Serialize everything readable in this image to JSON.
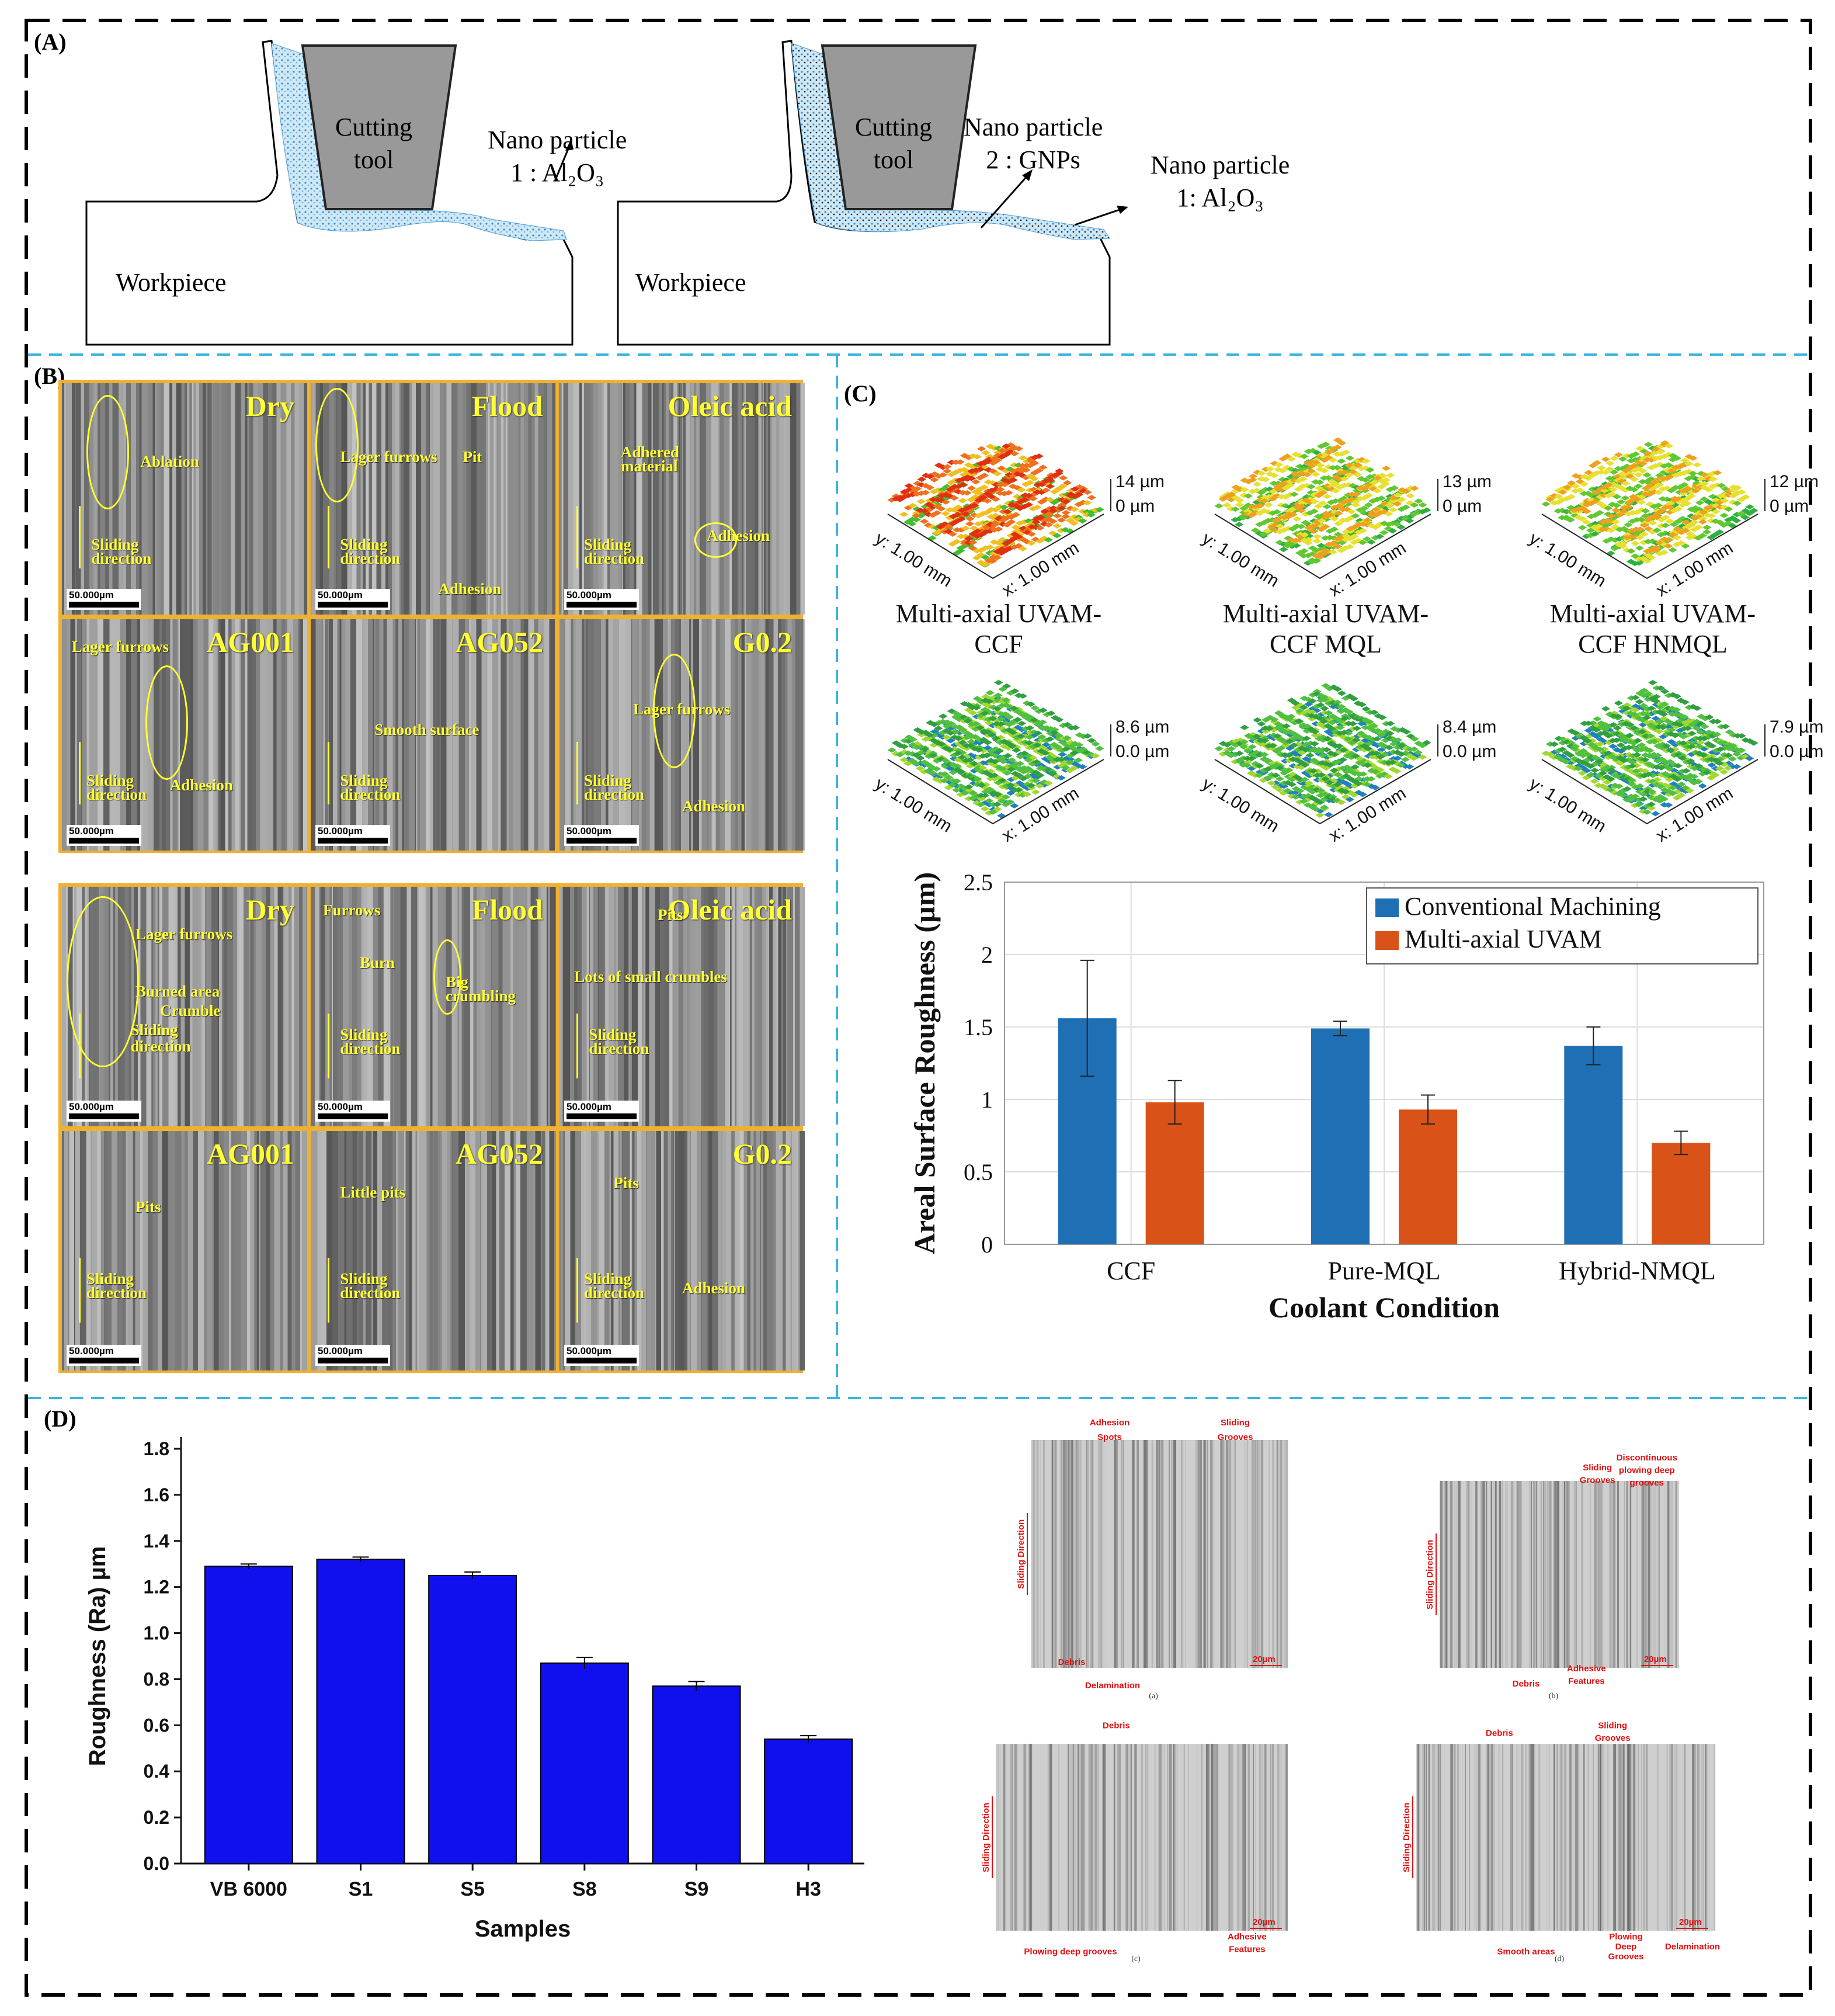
{
  "panels": {
    "a": {
      "label": "(A)",
      "left": {
        "tool": [
          "Cutting",
          "tool"
        ],
        "particle": [
          "Nano particle",
          "1 : Al₂O₃"
        ],
        "workpiece": "Workpiece"
      },
      "right": {
        "tool": [
          "Cutting",
          "tool"
        ],
        "particle2": [
          "Nano particle",
          "2 : GNPs"
        ],
        "particle1": [
          "Nano particle",
          "1: Al₂O₃"
        ],
        "workpiece": "Workpiece"
      }
    },
    "b": {
      "label": "(B)",
      "scale": "50.000µm",
      "top_grid": [
        {
          "title": "Dry",
          "annotations": [
            "Ablation",
            "Sliding",
            "direction"
          ]
        },
        {
          "title": "Flood",
          "annotations": [
            "Lager furrows",
            "Pit",
            "Sliding",
            "direction",
            "Adhesion"
          ]
        },
        {
          "title": "Oleic acid",
          "annotations": [
            "Adhered",
            "material",
            "Sliding",
            "direction",
            "Adhesion"
          ]
        },
        {
          "title": "AG001",
          "annotations": [
            "Lager furrows",
            "Sliding",
            "direction",
            "Adhesion"
          ]
        },
        {
          "title": "AG052",
          "annotations": [
            "Smooth surface",
            "Sliding",
            "direction"
          ]
        },
        {
          "title": "G0.2",
          "annotations": [
            "Lager furrows",
            "Sliding",
            "direction",
            "Adhesion"
          ]
        }
      ],
      "bottom_grid": [
        {
          "title": "Dry",
          "annotations": [
            "Lager furrows",
            "Burned area",
            "Crumble",
            "Sliding",
            "direction"
          ]
        },
        {
          "title": "Flood",
          "annotations": [
            "Furrows",
            "Burn",
            "Big",
            "crumbling",
            "Sliding",
            "direction"
          ]
        },
        {
          "title": "Oleic acid",
          "annotations": [
            "Pits",
            "Lots of small crumbles",
            "Sliding",
            "direction"
          ]
        },
        {
          "title": "AG001",
          "annotations": [
            "Pits",
            "Sliding",
            "direction"
          ]
        },
        {
          "title": "AG052",
          "annotations": [
            "Little pits",
            "Sliding",
            "direction"
          ]
        },
        {
          "title": "G0.2",
          "annotations": [
            "Pits",
            "Sliding",
            "direction",
            "Adhesion"
          ]
        }
      ]
    },
    "c": {
      "label": "(C)",
      "surfaces": [
        {
          "zmax": "14 µm",
          "zmin": "0 µm",
          "y": "y: 1.00 mm",
          "x": "x: 1.00 mm",
          "caption": [
            "Multi-axial UVAM-",
            "CCF"
          ],
          "palette": "red"
        },
        {
          "zmax": "13 µm",
          "zmin": "0 µm",
          "y": "y: 1.00 mm",
          "x": "x: 1.00 mm",
          "caption": [
            "Multi-axial UVAM-",
            "CCF MQL"
          ],
          "palette": "orange"
        },
        {
          "zmax": "12 µm",
          "zmin": "0 µm",
          "y": "y: 1.00 mm",
          "x": "x: 1.00 mm",
          "caption": [
            "Multi-axial UVAM-",
            "CCF HNMQL"
          ],
          "palette": "orange"
        },
        {
          "zmax": "8.6 µm",
          "zmin": "0.0 µm",
          "y": "y: 1.00 mm",
          "x": "x: 1.00 mm",
          "caption": [],
          "palette": "green"
        },
        {
          "zmax": "8.4 µm",
          "zmin": "0.0 µm",
          "y": "y: 1.00 mm",
          "x": "x: 1.00 mm",
          "caption": [],
          "palette": "green"
        },
        {
          "zmax": "7.9 µm",
          "zmin": "0.0 µm",
          "y": "y: 1.00 mm",
          "x": "x: 1.00 mm",
          "caption": [],
          "palette": "green"
        }
      ]
    },
    "d": {
      "label": "(D)",
      "sem": [
        {
          "sub": "(a)",
          "side": "Sliding Direction",
          "scale": "20µm",
          "annotations": [
            "Adhesion",
            "Spots",
            "Sliding",
            "Grooves",
            "Debris",
            "Delamination"
          ]
        },
        {
          "sub": "(b)",
          "side": "Sliding Direction",
          "scale": "20µm",
          "annotations": [
            "Sliding",
            "Grooves",
            "Discontinuous",
            "plowing deep",
            "grooves",
            "Debris",
            "Adhesive",
            "Features"
          ]
        },
        {
          "sub": "(c)",
          "side": "Sliding Direction",
          "scale": "20µm",
          "annotations": [
            "Debris",
            "Plowing deep grooves",
            "Adhesive",
            "Features"
          ]
        },
        {
          "sub": "(d)",
          "side": "Sliding Direction",
          "scale": "20µm",
          "annotations": [
            "Debris",
            "Sliding",
            "Grooves",
            "Smooth areas",
            "Plowing",
            "Deep",
            "Grooves",
            "Delamination"
          ]
        }
      ]
    }
  },
  "colors": {
    "tile_border": "#f0b030",
    "yellow_text": "#ffff33",
    "blue_bar": "#1010ee",
    "cm_bar": "#1f6fb5",
    "uvam_bar": "#d95319",
    "dash_cyan": "#3ab4e0",
    "sem_red": "#e01010"
  },
  "chart_data": [
    {
      "type": "bar",
      "panel": "C",
      "categories": [
        "CCF",
        "Pure-MQL",
        "Hybrid-NMQL"
      ],
      "series": [
        {
          "name": "Conventional Machining",
          "values": [
            1.56,
            1.49,
            1.37
          ],
          "errors": [
            0.4,
            0.05,
            0.13
          ]
        },
        {
          "name": "Multi-axial UVAM",
          "values": [
            0.98,
            0.93,
            0.7
          ],
          "errors": [
            0.15,
            0.1,
            0.08
          ]
        }
      ],
      "xlabel": "Coolant Condition",
      "ylabel": "Areal Surface Roughness (µm)",
      "ylim": [
        0,
        2.5
      ],
      "yticks": [
        "0",
        "0.5",
        "1",
        "1.5",
        "2",
        "2.5"
      ],
      "grid": true,
      "legend": "top-right"
    },
    {
      "type": "bar",
      "panel": "D",
      "categories": [
        "VB 6000",
        "S1",
        "S5",
        "S8",
        "S9",
        "H3"
      ],
      "values": [
        1.29,
        1.32,
        1.25,
        0.87,
        0.77,
        0.54
      ],
      "errors": [
        0.01,
        0.01,
        0.015,
        0.025,
        0.02,
        0.015
      ],
      "xlabel": "Samples",
      "ylabel": "Roughness (Ra) µm",
      "ylim": [
        0,
        1.8
      ],
      "yticks": [
        "0.0",
        "0.2",
        "0.4",
        "0.6",
        "0.8",
        "1.0",
        "1.2",
        "1.4",
        "1.6",
        "1.8"
      ],
      "grid": false
    }
  ]
}
